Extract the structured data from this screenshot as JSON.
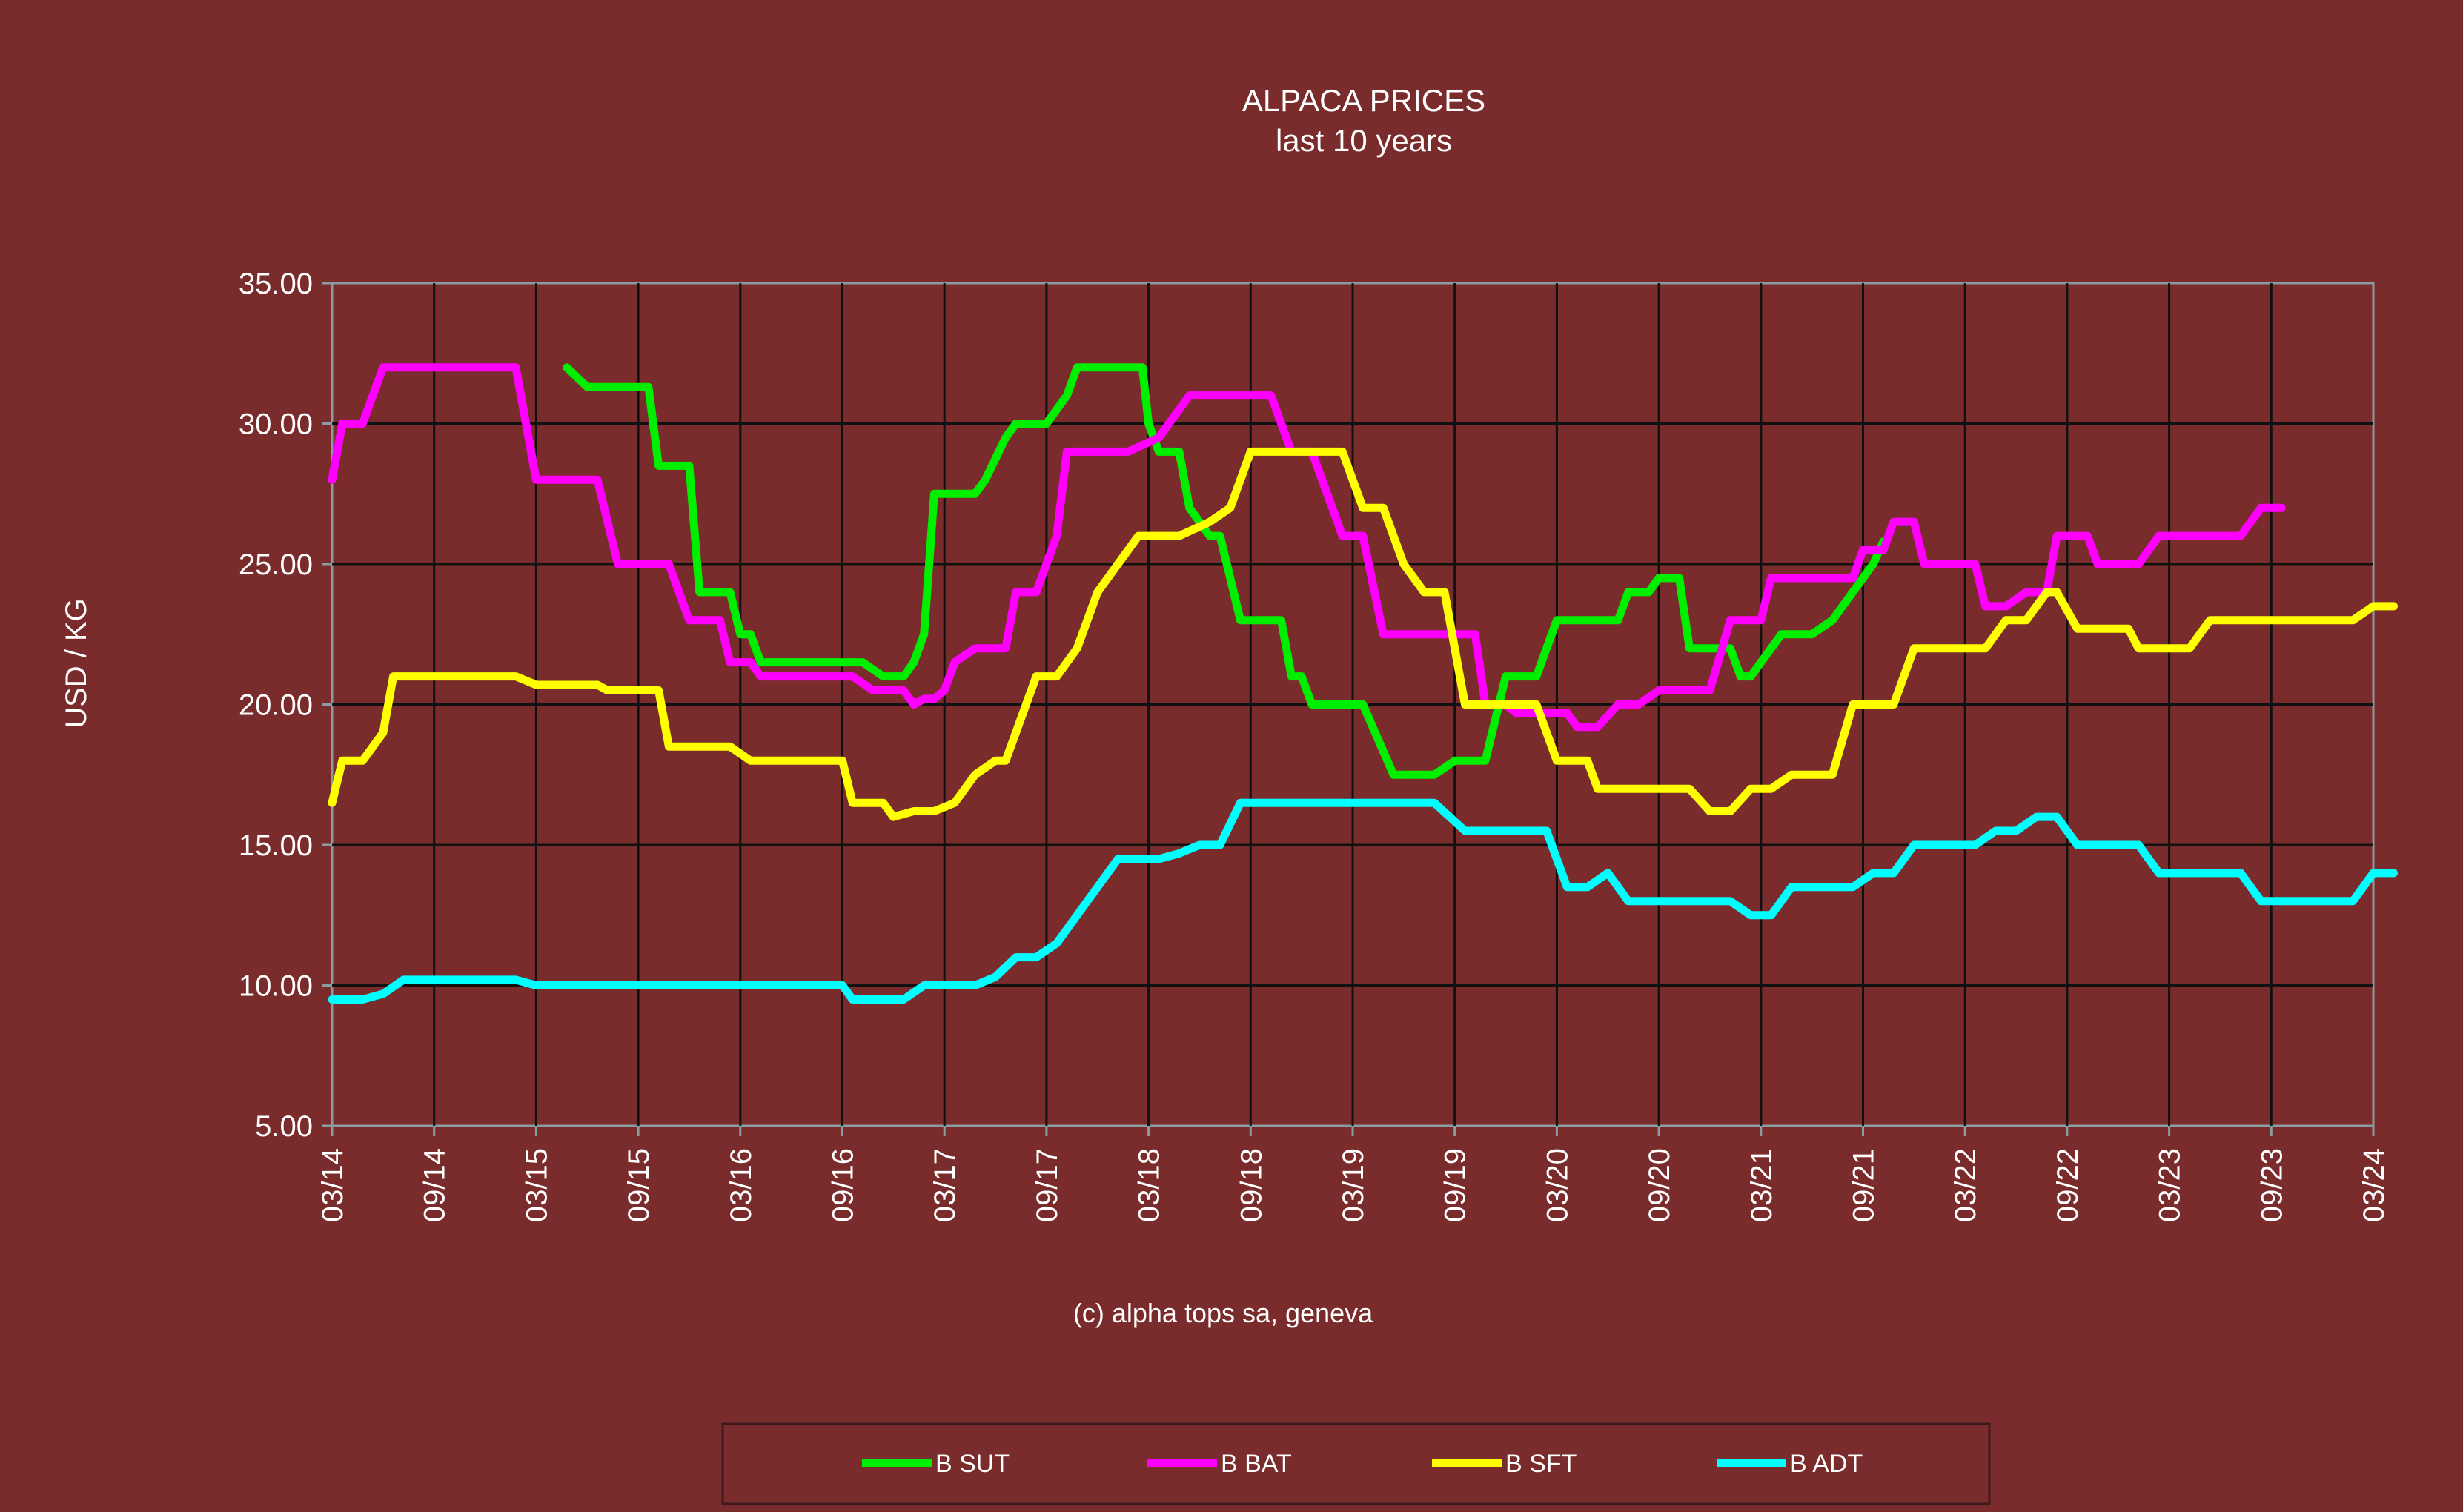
{
  "chart_data": {
    "type": "line",
    "title": "ALPACA PRICES",
    "subtitle": "last 10 years",
    "ylabel": "USD / KG",
    "xlabel": "",
    "ylim": [
      5,
      35
    ],
    "y_ticks": [
      "5.00",
      "10.00",
      "15.00",
      "20.00",
      "25.00",
      "30.00",
      "35.00"
    ],
    "categories": [
      "03/14",
      "09/14",
      "03/15",
      "09/15",
      "03/16",
      "09/16",
      "03/17",
      "09/17",
      "03/18",
      "09/18",
      "03/19",
      "09/19",
      "03/20",
      "09/20",
      "03/21",
      "09/21",
      "03/22",
      "09/22",
      "03/23",
      "09/23",
      "03/24"
    ],
    "grid": true,
    "legend_position": "bottom",
    "series": [
      {
        "name": "B SUT",
        "color": "#00ee00",
        "points": [
          [
            1.15,
            32
          ],
          [
            1.25,
            31.3
          ],
          [
            1.55,
            31.3
          ],
          [
            1.6,
            28.5
          ],
          [
            1.75,
            28.5
          ],
          [
            1.8,
            24
          ],
          [
            1.95,
            24
          ],
          [
            2.0,
            22.5
          ],
          [
            2.05,
            22.5
          ],
          [
            2.1,
            21.5
          ],
          [
            2.5,
            21.5
          ],
          [
            2.6,
            21.5
          ],
          [
            2.7,
            21
          ],
          [
            2.8,
            21
          ],
          [
            2.85,
            21.5
          ],
          [
            2.9,
            22.5
          ],
          [
            2.95,
            27.5
          ],
          [
            3.15,
            27.5
          ],
          [
            3.2,
            28
          ],
          [
            3.3,
            29.5
          ],
          [
            3.35,
            30
          ],
          [
            3.5,
            30
          ],
          [
            3.6,
            31
          ],
          [
            3.65,
            32
          ],
          [
            3.95,
            32
          ],
          [
            3.97,
            32
          ],
          [
            4.0,
            30
          ],
          [
            4.05,
            29
          ],
          [
            4.15,
            29
          ],
          [
            4.2,
            27
          ],
          [
            4.3,
            26
          ],
          [
            4.35,
            26
          ],
          [
            4.45,
            23
          ],
          [
            4.65,
            23
          ],
          [
            4.7,
            21
          ],
          [
            4.75,
            21
          ],
          [
            4.8,
            20
          ],
          [
            5.0,
            20
          ],
          [
            5.05,
            20
          ],
          [
            5.2,
            17.5
          ],
          [
            5.3,
            17.5
          ],
          [
            5.4,
            17.5
          ],
          [
            5.5,
            18
          ],
          [
            5.65,
            18
          ],
          [
            5.75,
            21
          ],
          [
            5.9,
            21
          ],
          [
            6.0,
            23
          ],
          [
            6.25,
            23
          ],
          [
            6.3,
            23
          ],
          [
            6.35,
            24
          ],
          [
            6.45,
            24
          ],
          [
            6.5,
            24.5
          ],
          [
            6.6,
            24.5
          ],
          [
            6.65,
            22
          ],
          [
            6.8,
            22
          ],
          [
            6.85,
            22
          ],
          [
            6.9,
            21
          ],
          [
            6.95,
            21
          ],
          [
            7.05,
            22
          ],
          [
            7.1,
            22.5
          ],
          [
            7.25,
            22.5
          ],
          [
            7.35,
            23
          ],
          [
            7.45,
            24
          ],
          [
            7.55,
            25
          ],
          [
            7.6,
            25.8
          ]
        ]
      },
      {
        "name": "B BAT",
        "color": "#ff00ff",
        "points": [
          [
            0,
            28
          ],
          [
            0.05,
            30
          ],
          [
            0.15,
            30
          ],
          [
            0.25,
            32
          ],
          [
            0.55,
            32
          ],
          [
            0.85,
            32
          ],
          [
            0.9,
            32
          ],
          [
            0.95,
            30
          ],
          [
            1.0,
            28
          ],
          [
            1.25,
            28
          ],
          [
            1.3,
            28
          ],
          [
            1.4,
            25
          ],
          [
            1.65,
            25
          ],
          [
            1.75,
            23
          ],
          [
            1.9,
            23
          ],
          [
            1.95,
            21.5
          ],
          [
            2.05,
            21.5
          ],
          [
            2.1,
            21
          ],
          [
            2.55,
            21
          ],
          [
            2.65,
            20.5
          ],
          [
            2.8,
            20.5
          ],
          [
            2.85,
            20
          ],
          [
            2.9,
            20.2
          ],
          [
            2.95,
            20.2
          ],
          [
            3.0,
            20.5
          ],
          [
            3.05,
            21.5
          ],
          [
            3.15,
            22
          ],
          [
            3.3,
            22
          ],
          [
            3.35,
            24
          ],
          [
            3.45,
            24
          ],
          [
            3.55,
            26
          ],
          [
            3.6,
            29
          ],
          [
            3.85,
            29
          ],
          [
            3.9,
            29
          ],
          [
            4.05,
            29.5
          ],
          [
            4.1,
            30
          ],
          [
            4.2,
            31
          ],
          [
            4.55,
            31
          ],
          [
            4.6,
            31
          ],
          [
            4.7,
            29
          ],
          [
            4.8,
            29
          ],
          [
            4.9,
            27
          ],
          [
            4.95,
            26
          ],
          [
            5.05,
            26
          ],
          [
            5.15,
            22.5
          ],
          [
            5.6,
            22.5
          ],
          [
            5.65,
            20
          ],
          [
            5.75,
            20
          ],
          [
            5.8,
            19.7
          ],
          [
            6.05,
            19.7
          ],
          [
            6.1,
            19.2
          ],
          [
            6.2,
            19.2
          ],
          [
            6.3,
            20
          ],
          [
            6.4,
            20
          ],
          [
            6.5,
            20.5
          ],
          [
            6.75,
            20.5
          ],
          [
            6.85,
            23
          ],
          [
            7.0,
            23
          ],
          [
            7.05,
            24.5
          ],
          [
            7.45,
            24.5
          ],
          [
            7.5,
            25.5
          ],
          [
            7.6,
            25.5
          ],
          [
            7.65,
            26.5
          ],
          [
            7.75,
            26.5
          ],
          [
            7.8,
            25
          ],
          [
            7.95,
            25
          ],
          [
            8.05,
            25
          ],
          [
            8.1,
            23.5
          ],
          [
            8.2,
            23.5
          ],
          [
            8.3,
            24
          ],
          [
            8.4,
            24
          ],
          [
            8.45,
            26
          ],
          [
            8.6,
            26
          ],
          [
            8.65,
            25
          ],
          [
            8.8,
            25
          ],
          [
            8.85,
            25
          ],
          [
            8.95,
            26
          ],
          [
            9.1,
            26
          ],
          [
            9.35,
            26
          ],
          [
            9.45,
            27
          ],
          [
            9.55,
            27
          ]
        ]
      },
      {
        "name": "B SFT",
        "color": "#ffff00",
        "points": [
          [
            0,
            16.5
          ],
          [
            0.05,
            18
          ],
          [
            0.15,
            18
          ],
          [
            0.25,
            19
          ],
          [
            0.3,
            21
          ],
          [
            0.55,
            21
          ],
          [
            0.85,
            21
          ],
          [
            0.9,
            21
          ],
          [
            1.0,
            20.7
          ],
          [
            1.3,
            20.7
          ],
          [
            1.35,
            20.5
          ],
          [
            1.55,
            20.5
          ],
          [
            1.6,
            20.5
          ],
          [
            1.65,
            18.5
          ],
          [
            1.85,
            18.5
          ],
          [
            1.95,
            18.5
          ],
          [
            2.05,
            18
          ],
          [
            2.45,
            18
          ],
          [
            2.5,
            18
          ],
          [
            2.55,
            16.5
          ],
          [
            2.7,
            16.5
          ],
          [
            2.75,
            16
          ],
          [
            2.85,
            16.2
          ],
          [
            2.95,
            16.2
          ],
          [
            3.05,
            16.5
          ],
          [
            3.15,
            17.5
          ],
          [
            3.25,
            18
          ],
          [
            3.3,
            18
          ],
          [
            3.35,
            19
          ],
          [
            3.45,
            21
          ],
          [
            3.55,
            21
          ],
          [
            3.65,
            22
          ],
          [
            3.75,
            24
          ],
          [
            3.85,
            25
          ],
          [
            3.95,
            26
          ],
          [
            4.05,
            26
          ],
          [
            4.15,
            26
          ],
          [
            4.3,
            26.5
          ],
          [
            4.4,
            27
          ],
          [
            4.5,
            29
          ],
          [
            4.6,
            29
          ],
          [
            4.85,
            29
          ],
          [
            4.95,
            29
          ],
          [
            5.05,
            27
          ],
          [
            5.15,
            27
          ],
          [
            5.25,
            25
          ],
          [
            5.35,
            24
          ],
          [
            5.45,
            24
          ],
          [
            5.55,
            20
          ],
          [
            5.85,
            20
          ],
          [
            5.9,
            20
          ],
          [
            6.0,
            18
          ],
          [
            6.15,
            18
          ],
          [
            6.2,
            17
          ],
          [
            6.35,
            17
          ],
          [
            6.55,
            17
          ],
          [
            6.65,
            17
          ],
          [
            6.75,
            16.2
          ],
          [
            6.85,
            16.2
          ],
          [
            6.95,
            17
          ],
          [
            7.05,
            17
          ],
          [
            7.15,
            17.5
          ],
          [
            7.35,
            17.5
          ],
          [
            7.45,
            20
          ],
          [
            7.65,
            20
          ],
          [
            7.75,
            22
          ],
          [
            8.1,
            22
          ],
          [
            8.2,
            23
          ],
          [
            8.3,
            23
          ],
          [
            8.4,
            24
          ],
          [
            8.45,
            24
          ],
          [
            8.55,
            22.7
          ],
          [
            8.7,
            22.7
          ],
          [
            8.8,
            22.7
          ],
          [
            8.85,
            22
          ],
          [
            9.0,
            22
          ],
          [
            9.1,
            22
          ],
          [
            9.2,
            23
          ],
          [
            9.55,
            23
          ],
          [
            9.6,
            23
          ],
          [
            9.85,
            23
          ],
          [
            9.9,
            23
          ],
          [
            10.0,
            23.5
          ],
          [
            10.1,
            23.5
          ]
        ]
      },
      {
        "name": "B ADT",
        "color": "#00ffff",
        "points": [
          [
            0,
            9.5
          ],
          [
            0.15,
            9.5
          ],
          [
            0.25,
            9.7
          ],
          [
            0.35,
            10.2
          ],
          [
            0.55,
            10.2
          ],
          [
            0.85,
            10.2
          ],
          [
            0.9,
            10.2
          ],
          [
            1.0,
            10
          ],
          [
            1.3,
            10
          ],
          [
            1.55,
            10
          ],
          [
            1.9,
            10
          ],
          [
            2.05,
            10
          ],
          [
            2.35,
            10
          ],
          [
            2.5,
            10
          ],
          [
            2.55,
            9.5
          ],
          [
            2.8,
            9.5
          ],
          [
            2.9,
            10
          ],
          [
            3.15,
            10
          ],
          [
            3.25,
            10.3
          ],
          [
            3.35,
            11
          ],
          [
            3.45,
            11
          ],
          [
            3.55,
            11.5
          ],
          [
            3.65,
            12.5
          ],
          [
            3.75,
            13.5
          ],
          [
            3.85,
            14.5
          ],
          [
            4.05,
            14.5
          ],
          [
            4.15,
            14.7
          ],
          [
            4.25,
            15
          ],
          [
            4.35,
            15
          ],
          [
            4.45,
            16.5
          ],
          [
            4.6,
            16.5
          ],
          [
            4.85,
            16.5
          ],
          [
            4.95,
            16.5
          ],
          [
            5.05,
            16.5
          ],
          [
            5.3,
            16.5
          ],
          [
            5.4,
            16.5
          ],
          [
            5.55,
            15.5
          ],
          [
            5.7,
            15.5
          ],
          [
            5.85,
            15.5
          ],
          [
            5.95,
            15.5
          ],
          [
            6.05,
            13.5
          ],
          [
            6.15,
            13.5
          ],
          [
            6.25,
            14
          ],
          [
            6.35,
            13
          ],
          [
            6.5,
            13
          ],
          [
            6.75,
            13
          ],
          [
            6.85,
            13
          ],
          [
            6.95,
            12.5
          ],
          [
            7.05,
            12.5
          ],
          [
            7.15,
            13.5
          ],
          [
            7.45,
            13.5
          ],
          [
            7.55,
            14
          ],
          [
            7.65,
            14
          ],
          [
            7.75,
            15
          ],
          [
            8.0,
            15
          ],
          [
            8.05,
            15
          ],
          [
            8.15,
            15.5
          ],
          [
            8.25,
            15.5
          ],
          [
            8.35,
            16
          ],
          [
            8.45,
            16
          ],
          [
            8.55,
            15
          ],
          [
            8.75,
            15
          ],
          [
            8.85,
            15
          ],
          [
            8.95,
            14
          ],
          [
            9.25,
            14
          ],
          [
            9.35,
            14
          ],
          [
            9.45,
            13
          ],
          [
            9.65,
            13
          ],
          [
            9.75,
            13
          ],
          [
            9.9,
            13
          ],
          [
            10.0,
            14
          ],
          [
            10.1,
            14
          ]
        ]
      }
    ]
  },
  "copyright": "(c) alpha tops sa, geneva",
  "legend": [
    {
      "label": "B SUT",
      "color": "#00ee00"
    },
    {
      "label": "B BAT",
      "color": "#ff00ff"
    },
    {
      "label": "B SFT",
      "color": "#ffff00"
    },
    {
      "label": "B ADT",
      "color": "#00ffff"
    }
  ]
}
